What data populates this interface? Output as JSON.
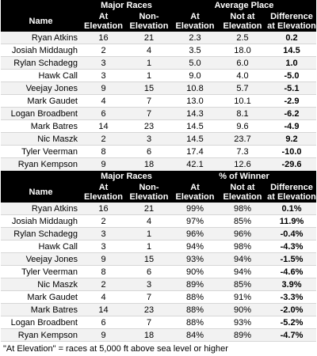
{
  "table1": {
    "group_headers": [
      "",
      "Major Races",
      "",
      "Average Place",
      "",
      ""
    ],
    "headers": [
      "Name",
      "At\nElevation",
      "Non-\nElevation",
      "At\nElevation",
      "Not at\nElevation",
      "Difference\nat Elevation"
    ],
    "rows": [
      [
        "Ryan Atkins",
        "16",
        "21",
        "2.3",
        "2.5",
        "0.2"
      ],
      [
        "Josiah Middaugh",
        "2",
        "4",
        "3.5",
        "18.0",
        "14.5"
      ],
      [
        "Rylan Schadegg",
        "3",
        "1",
        "5.0",
        "6.0",
        "1.0"
      ],
      [
        "Hawk Call",
        "3",
        "1",
        "9.0",
        "4.0",
        "-5.0"
      ],
      [
        "Veejay Jones",
        "9",
        "15",
        "10.8",
        "5.7",
        "-5.1"
      ],
      [
        "Mark Gaudet",
        "4",
        "7",
        "13.0",
        "10.1",
        "-2.9"
      ],
      [
        "Logan Broadbent",
        "6",
        "7",
        "14.3",
        "8.1",
        "-6.2"
      ],
      [
        "Mark Batres",
        "14",
        "23",
        "14.5",
        "9.6",
        "-4.9"
      ],
      [
        "Nic Maszk",
        "2",
        "3",
        "14.5",
        "23.7",
        "9.2"
      ],
      [
        "Tyler Veerman",
        "8",
        "6",
        "17.4",
        "7.3",
        "-10.0"
      ],
      [
        "Ryan Kempson",
        "9",
        "18",
        "42.1",
        "12.6",
        "-29.6"
      ]
    ]
  },
  "table2": {
    "group_headers": [
      "",
      "Major Races",
      "",
      "% of Winner",
      "",
      ""
    ],
    "headers": [
      "Name",
      "At\nElevation",
      "Non-\nElevation",
      "At\nElevation",
      "Not at\nElevation",
      "Difference\nat Elevation"
    ],
    "rows": [
      [
        "Ryan Atkins",
        "16",
        "21",
        "99%",
        "98%",
        "0.1%"
      ],
      [
        "Josiah Middaugh",
        "2",
        "4",
        "97%",
        "85%",
        "11.9%"
      ],
      [
        "Rylan Schadegg",
        "3",
        "1",
        "96%",
        "96%",
        "-0.4%"
      ],
      [
        "Hawk Call",
        "3",
        "1",
        "94%",
        "98%",
        "-4.3%"
      ],
      [
        "Veejay Jones",
        "9",
        "15",
        "93%",
        "94%",
        "-1.5%"
      ],
      [
        "Tyler Veerman",
        "8",
        "6",
        "90%",
        "94%",
        "-4.6%"
      ],
      [
        "Nic Maszk",
        "2",
        "3",
        "89%",
        "85%",
        "3.9%"
      ],
      [
        "Mark Gaudet",
        "4",
        "7",
        "88%",
        "91%",
        "-3.3%"
      ],
      [
        "Mark Batres",
        "14",
        "23",
        "88%",
        "90%",
        "-2.0%"
      ],
      [
        "Logan Broadbent",
        "6",
        "7",
        "88%",
        "93%",
        "-5.2%"
      ],
      [
        "Ryan Kempson",
        "9",
        "18",
        "84%",
        "89%",
        "-4.7%"
      ]
    ]
  },
  "footnote": "\"At Elevation\" = races at 5,000 ft above sea level or higher"
}
